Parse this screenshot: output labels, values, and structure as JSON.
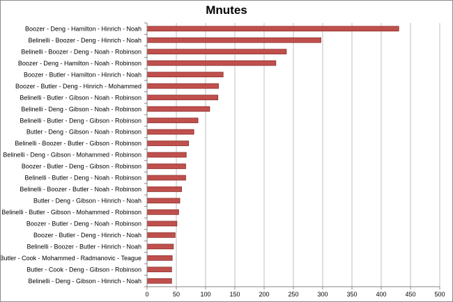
{
  "chart_data": {
    "type": "bar",
    "orientation": "horizontal",
    "title": "Mnutes",
    "xlabel": "",
    "ylabel": "",
    "xlim": [
      0,
      500
    ],
    "x_ticks": [
      0,
      50,
      100,
      150,
      200,
      250,
      300,
      350,
      400,
      450,
      500
    ],
    "grid": true,
    "legend": "none",
    "bar_color": "#c0504d",
    "bar_edge_color": "#8b2d2a",
    "categories": [
      "Boozer - Deng - Hamilton - Hinrich - Noah",
      "Belinelli - Boozer - Deng - Hinrich - Noah",
      "Belinelli - Boozer - Deng - Noah - Robinson",
      "Boozer - Deng - Hamilton - Noah - Robinson",
      "Boozer - Butler - Hamilton - Hinrich - Noah",
      "Boozer - Butler - Deng - Hinrich - Mohammed",
      "Belinelli - Butler - Gibson - Noah - Robinson",
      "Belinelli - Deng - Gibson - Noah - Robinson",
      "Belinelli - Butler - Deng - Gibson - Robinson",
      "Butler - Deng - Gibson - Noah - Robinson",
      "Belinelli - Boozer - Butler - Gibson - Robinson",
      "Belinelli - Deng - Gibson - Mohammed - Robinson",
      "Boozer - Butler - Deng - Gibson - Robinson",
      "Belinelli - Butler - Deng - Noah - Robinson",
      "Belinelli - Boozer - Butler - Noah - Robinson",
      "Butler - Deng - Gibson - Hinrich - Noah",
      "Belinelli - Butler - Gibson - Mohammed - Robinson",
      "Boozer - Butler - Deng - Noah - Robinson",
      "Boozer - Butler - Deng - Hinrich - Noah",
      "Belinelli - Boozer - Butler - Hinrich - Noah",
      "Butler - Cook - Mohammed - Radmanovic - Teague",
      "Butler - Cook - Deng - Gibson - Robinson",
      "Belinelli - Deng - Gibson - Hinrich - Noah"
    ],
    "values": [
      430,
      297,
      238,
      220,
      130,
      122,
      121,
      107,
      87,
      80,
      71,
      67,
      66,
      66,
      59,
      56,
      54,
      51,
      48,
      45,
      43,
      42,
      42
    ]
  }
}
